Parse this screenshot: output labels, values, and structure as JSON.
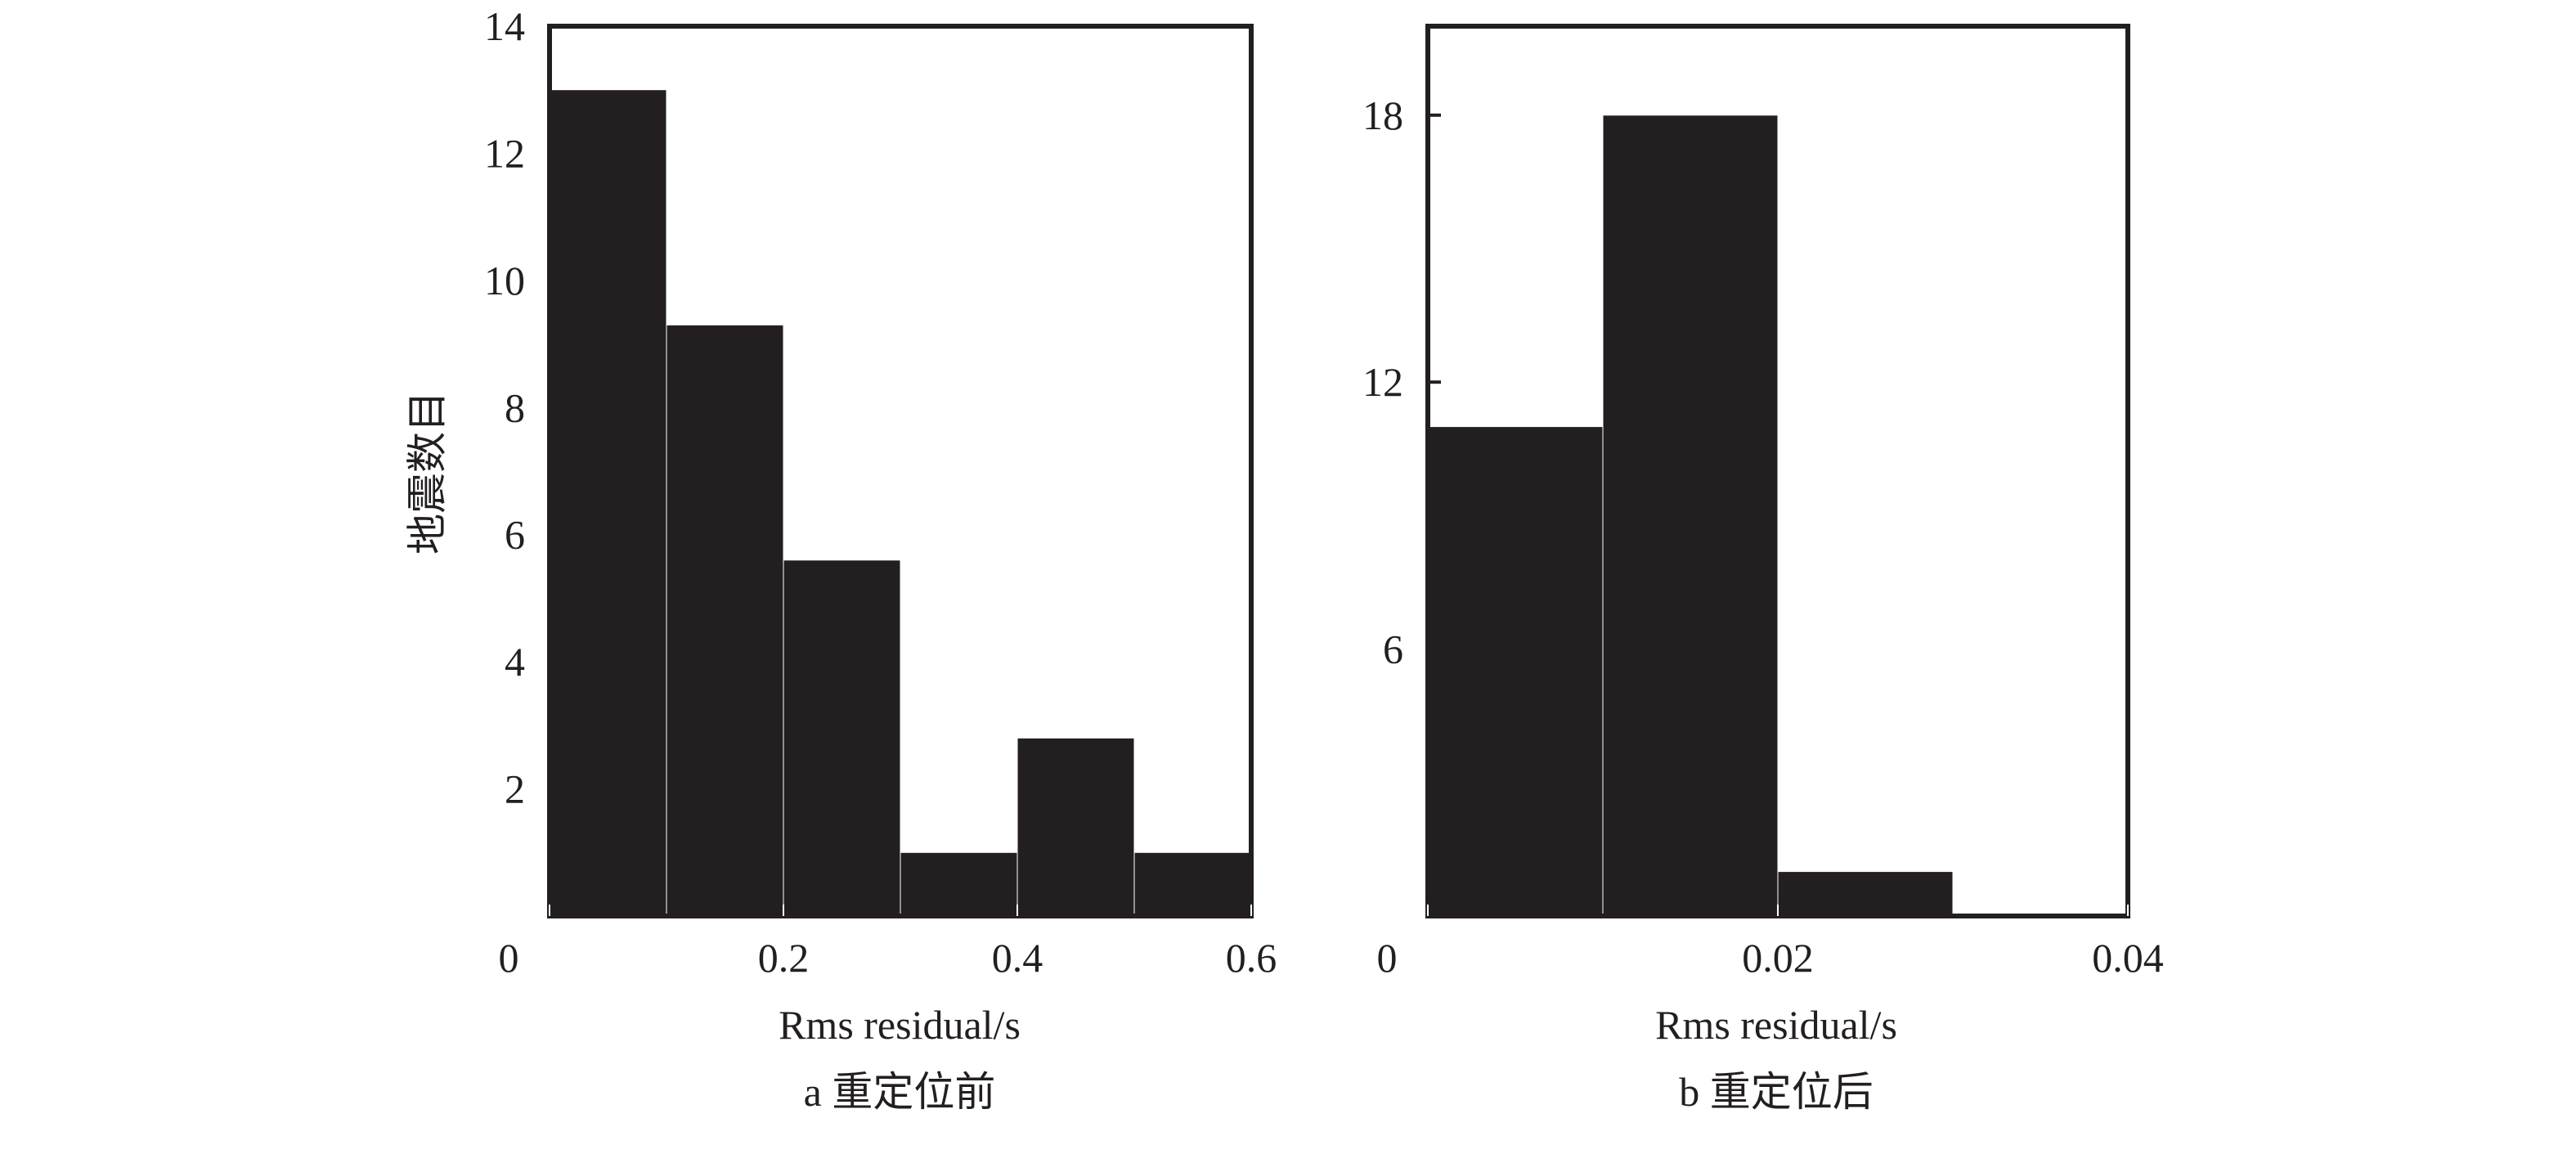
{
  "figure": {
    "ylabel": "地震数目",
    "bar_color": "#231f20",
    "text_color": "#231f20"
  },
  "chart_data": [
    {
      "type": "bar",
      "panel": "a",
      "caption": "a 重定位前",
      "xlabel": "Rms residual/s",
      "ylabel": "地震数目",
      "xlim": [
        0,
        0.6
      ],
      "ylim": [
        0,
        14
      ],
      "bin_edges": [
        0,
        0.1,
        0.2,
        0.3,
        0.4,
        0.5,
        0.6
      ],
      "values": [
        13,
        9.3,
        5.6,
        1,
        2.8,
        1
      ],
      "x_ticks": [
        "0",
        "0.2",
        "0.4",
        "0.6"
      ],
      "y_ticks": [
        "2",
        "4",
        "6",
        "8",
        "10",
        "12",
        "14"
      ],
      "grid": false
    },
    {
      "type": "bar",
      "panel": "b",
      "caption": "b 重定位后",
      "xlabel": "Rms residual/s",
      "ylabel": "",
      "xlim": [
        0,
        0.04
      ],
      "ylim": [
        0,
        20
      ],
      "bin_edges": [
        0,
        0.01,
        0.02,
        0.03,
        0.04
      ],
      "values": [
        11,
        18,
        1,
        0
      ],
      "x_ticks": [
        "0",
        "0.02",
        "0.04"
      ],
      "y_ticks": [
        "6",
        "12",
        "18"
      ],
      "grid": false
    }
  ]
}
